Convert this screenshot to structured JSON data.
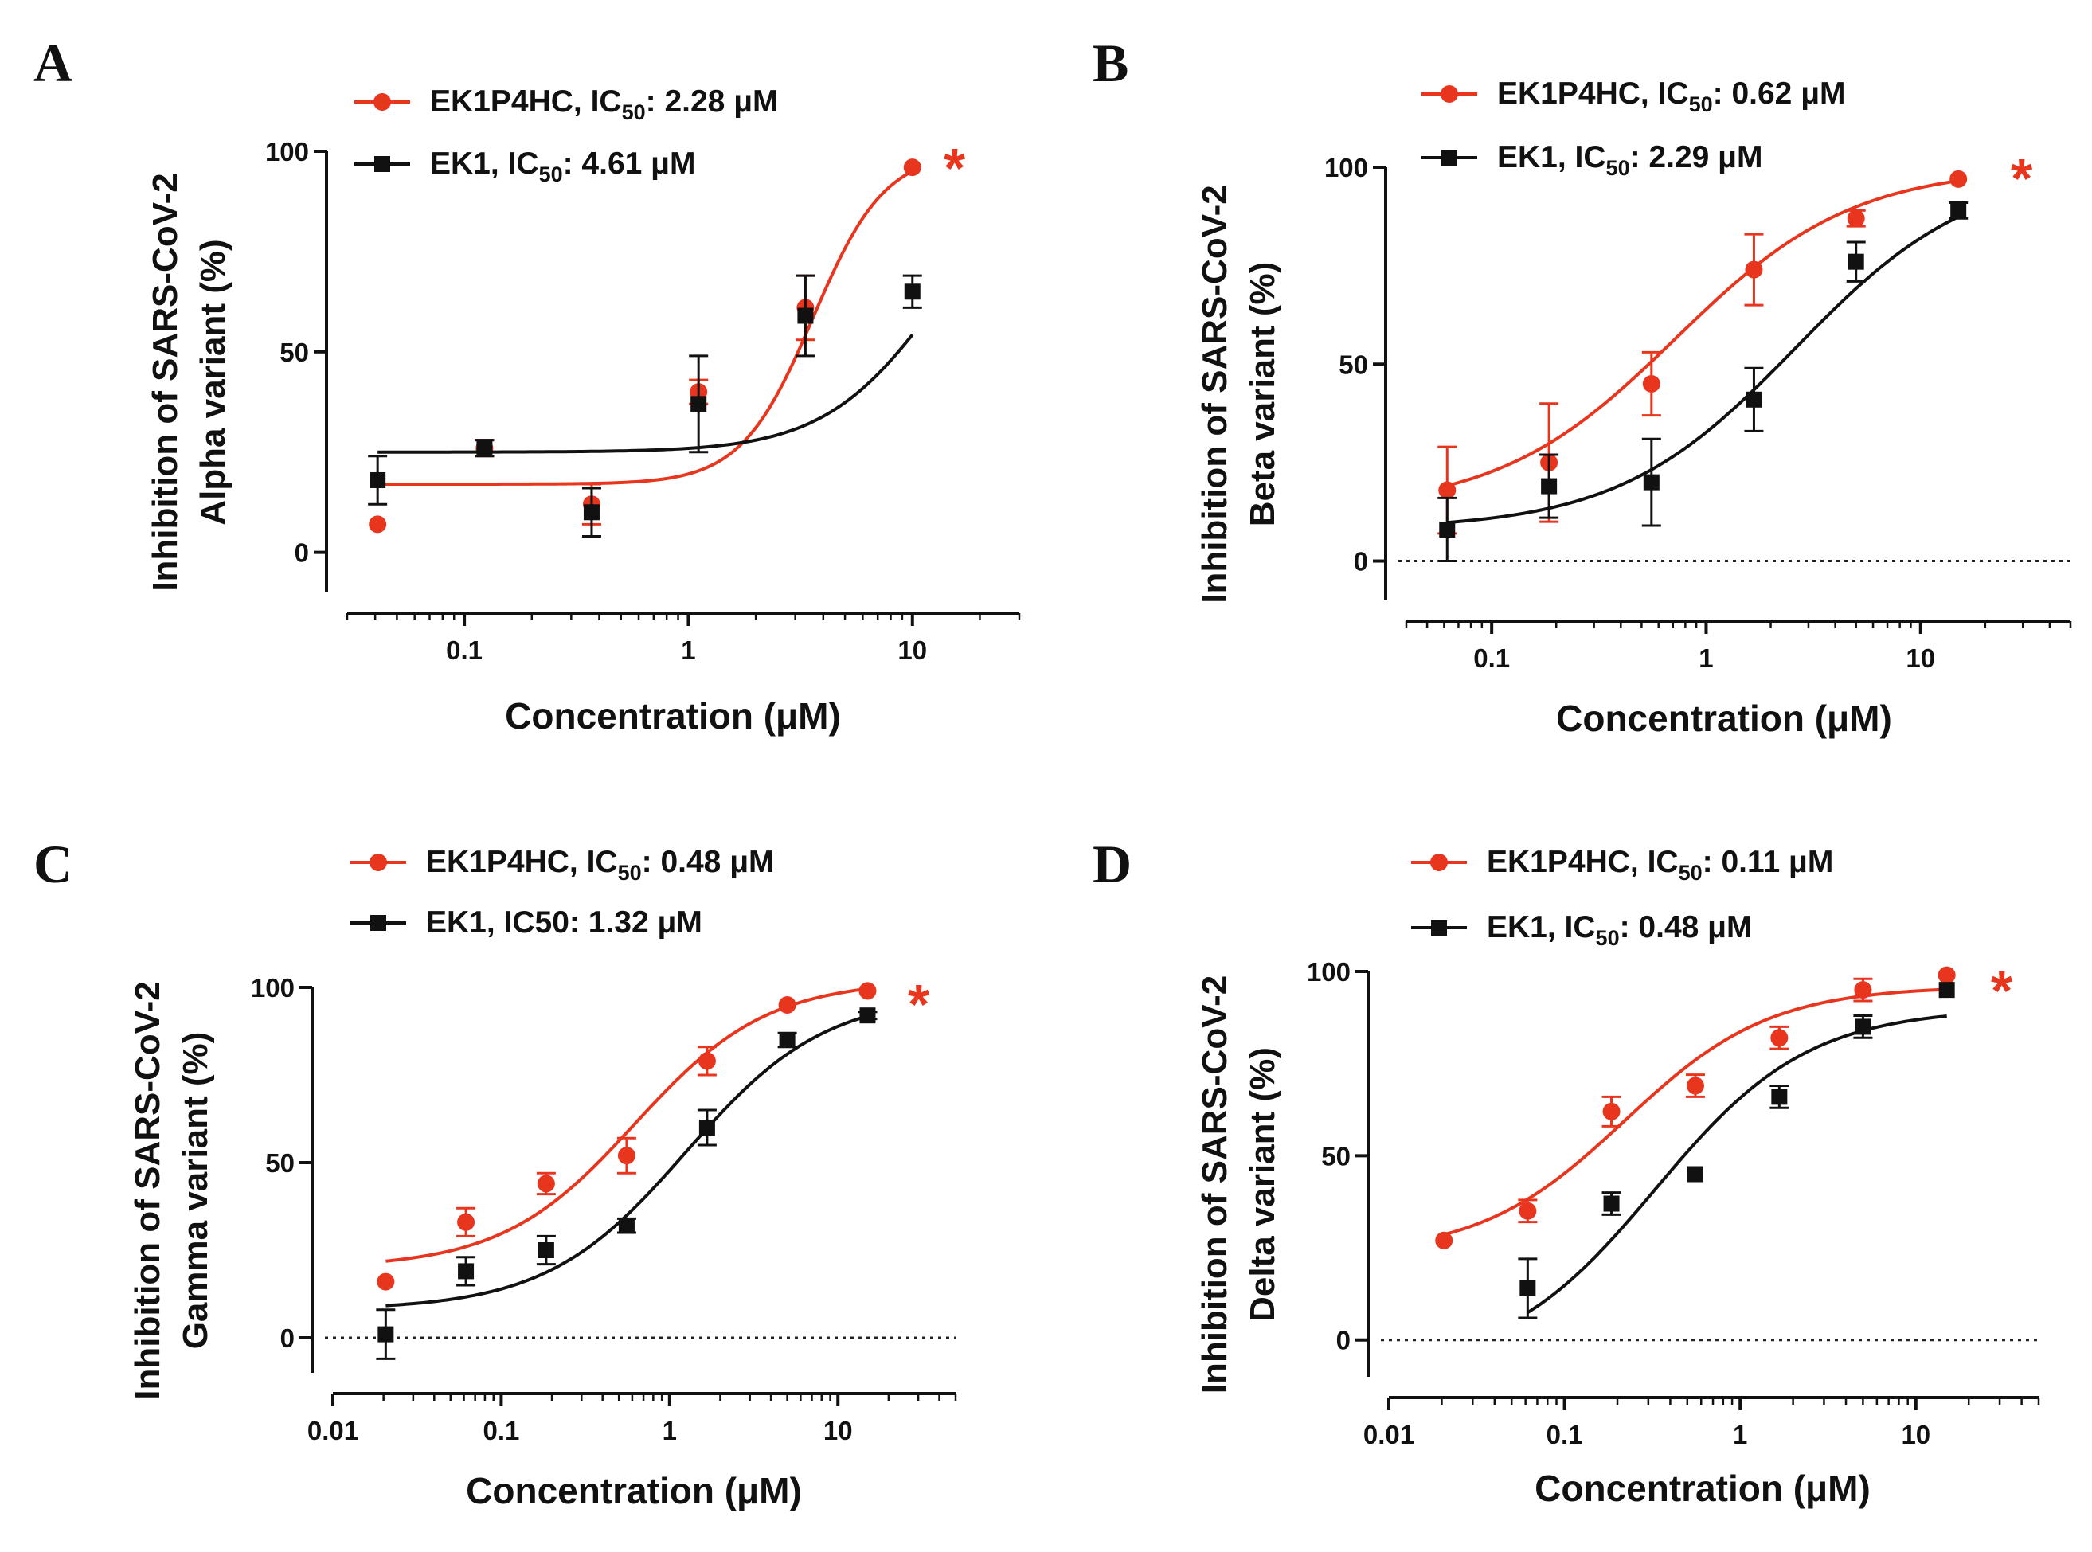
{
  "chart_data": [
    {
      "type": "scatter",
      "panel_label": "A",
      "xlabel": "Concentration (μM)",
      "ylabel": [
        "Inhibition of SARS-CoV-2",
        "Alpha variant (%)"
      ],
      "xscale": "log",
      "xlim": [
        0.03,
        30
      ],
      "ylim": [
        -10,
        100
      ],
      "xticks": [
        0.1,
        1,
        10
      ],
      "xtick_labels": [
        "0.1",
        "1",
        "10"
      ],
      "yticks": [
        0,
        50,
        100
      ],
      "ytick_labels": [
        "0",
        "50",
        "100"
      ],
      "zero_line": false,
      "annotation": "*",
      "series": [
        {
          "name": "EK1P4HC",
          "legend_text": "EK1P4HC, IC",
          "legend_sub": "50",
          "legend_rest": ": 2.28 μM",
          "color": "#e8351e",
          "marker": "circle",
          "x": [
            0.041,
            0.123,
            0.37,
            1.11,
            3.33,
            10
          ],
          "y": [
            7,
            26,
            12,
            40,
            61,
            96
          ],
          "err": [
            0,
            2,
            5,
            3,
            8,
            0
          ],
          "fit": {
            "bottom": 17,
            "top": 100,
            "ec50": 3.6,
            "hill": 2.7
          }
        },
        {
          "name": "EK1",
          "legend_text": "EK1, IC",
          "legend_sub": "50",
          "legend_rest": ": 4.61 μM",
          "color": "#111111",
          "marker": "square",
          "x": [
            0.041,
            0.123,
            0.37,
            1.11,
            3.33,
            10
          ],
          "y": [
            18,
            26,
            10,
            37,
            59,
            65
          ],
          "err": [
            6,
            2,
            6,
            12,
            10,
            4
          ],
          "fit": {
            "bottom": 25,
            "top": 100,
            "ec50": 13,
            "hill": 1.7
          }
        }
      ]
    },
    {
      "type": "scatter",
      "panel_label": "B",
      "xlabel": "Concentration (μM)",
      "ylabel": [
        "Inhibition of SARS-CoV-2",
        "Beta variant (%)"
      ],
      "xscale": "log",
      "xlim": [
        0.04,
        50
      ],
      "ylim": [
        -10,
        100
      ],
      "xticks": [
        0.1,
        1,
        10
      ],
      "xtick_labels": [
        "0.1",
        "1",
        "10"
      ],
      "yticks": [
        0,
        50,
        100
      ],
      "ytick_labels": [
        "0",
        "50",
        "100"
      ],
      "zero_line": true,
      "annotation": "*",
      "series": [
        {
          "name": "EK1P4HC",
          "legend_text": "EK1P4HC, IC",
          "legend_sub": "50",
          "legend_rest": ": 0.62 μM",
          "color": "#e8351e",
          "marker": "circle",
          "x": [
            0.062,
            0.185,
            0.556,
            1.67,
            5,
            15
          ],
          "y": [
            18,
            25,
            45,
            74,
            87,
            97
          ],
          "err": [
            11,
            15,
            8,
            9,
            2,
            0
          ],
          "fit": {
            "bottom": 13,
            "top": 100,
            "ec50": 0.72,
            "hill": 1.05
          }
        },
        {
          "name": "EK1",
          "legend_text": "EK1, IC",
          "legend_sub": "50",
          "legend_rest": ": 2.29 μM",
          "color": "#111111",
          "marker": "square",
          "x": [
            0.062,
            0.185,
            0.556,
            1.67,
            5,
            15
          ],
          "y": [
            8,
            19,
            20,
            41,
            76,
            89
          ],
          "err": [
            8,
            8,
            11,
            8,
            5,
            2
          ],
          "fit": {
            "bottom": 8,
            "top": 100,
            "ec50": 2.6,
            "hill": 1.05
          }
        }
      ]
    },
    {
      "type": "scatter",
      "panel_label": "C",
      "xlabel": "Concentration (μM)",
      "ylabel": [
        "Inhibition of SARS-CoV-2",
        "Gamma variant (%)"
      ],
      "xscale": "log",
      "xlim": [
        0.01,
        50
      ],
      "ylim": [
        -10,
        100
      ],
      "xticks": [
        0.01,
        0.1,
        1,
        10
      ],
      "xtick_labels": [
        "0.01",
        "0.1",
        "1",
        "10"
      ],
      "yticks": [
        0,
        50,
        100
      ],
      "ytick_labels": [
        "0",
        "50",
        "100"
      ],
      "zero_line": true,
      "annotation": "*",
      "series": [
        {
          "name": "EK1P4HC",
          "legend_text": "EK1P4HC, IC",
          "legend_sub": "50",
          "legend_rest": ": 0.48 μM",
          "color": "#e8351e",
          "marker": "circle",
          "x": [
            0.0206,
            0.0617,
            0.185,
            0.556,
            1.67,
            5,
            15
          ],
          "y": [
            16,
            33,
            44,
            52,
            79,
            95,
            99
          ],
          "err": [
            0,
            4,
            3,
            5,
            4,
            0,
            0
          ],
          "fit": {
            "bottom": 20,
            "top": 102,
            "ec50": 0.62,
            "hill": 1.1
          }
        },
        {
          "name": "EK1",
          "legend_text": "EK1, IC50",
          "legend_sub": "",
          "legend_rest": ": 1.32 μM",
          "color": "#111111",
          "marker": "square",
          "x": [
            0.0206,
            0.0617,
            0.185,
            0.556,
            1.67,
            5,
            15
          ],
          "y": [
            1,
            19,
            25,
            32,
            60,
            85,
            92
          ],
          "err": [
            7,
            4,
            4,
            2,
            5,
            2,
            1
          ],
          "fit": {
            "bottom": 8,
            "top": 98,
            "ec50": 1.25,
            "hill": 1.05
          }
        }
      ]
    },
    {
      "type": "scatter",
      "panel_label": "D",
      "xlabel": "Concentration (μM)",
      "ylabel": [
        "Inhibition of SARS-CoV-2",
        "Delta variant (%)"
      ],
      "xscale": "log",
      "xlim": [
        0.01,
        50
      ],
      "ylim": [
        -10,
        100
      ],
      "xticks": [
        0.01,
        0.1,
        1,
        10
      ],
      "xtick_labels": [
        "0.01",
        "0.1",
        "1",
        "10"
      ],
      "yticks": [
        0,
        50,
        100
      ],
      "ytick_labels": [
        "0",
        "50",
        "100"
      ],
      "zero_line": true,
      "annotation": "*",
      "series": [
        {
          "name": "EK1P4HC",
          "legend_text": "EK1P4HC, IC",
          "legend_sub": "50",
          "legend_rest": ": 0.11 μM",
          "color": "#e8351e",
          "marker": "circle",
          "x": [
            0.0206,
            0.0617,
            0.185,
            0.556,
            1.67,
            5,
            15
          ],
          "y": [
            27,
            35,
            62,
            69,
            82,
            95,
            99
          ],
          "err": [
            0,
            3,
            4,
            3,
            3,
            3,
            0
          ],
          "fit": {
            "bottom": 23,
            "top": 96,
            "ec50": 0.22,
            "hill": 1.05
          }
        },
        {
          "name": "EK1",
          "legend_text": "EK1, IC",
          "legend_sub": "50",
          "legend_rest": ": 0.48 μM",
          "color": "#111111",
          "marker": "square",
          "x": [
            0.0617,
            0.185,
            0.556,
            1.67,
            5,
            15
          ],
          "y": [
            14,
            37,
            45,
            66,
            85,
            95
          ],
          "err": [
            8,
            3,
            0,
            3,
            3,
            0
          ],
          "fit": {
            "bottom": -8,
            "top": 90,
            "ec50": 0.33,
            "hill": 1.0
          }
        }
      ]
    }
  ]
}
